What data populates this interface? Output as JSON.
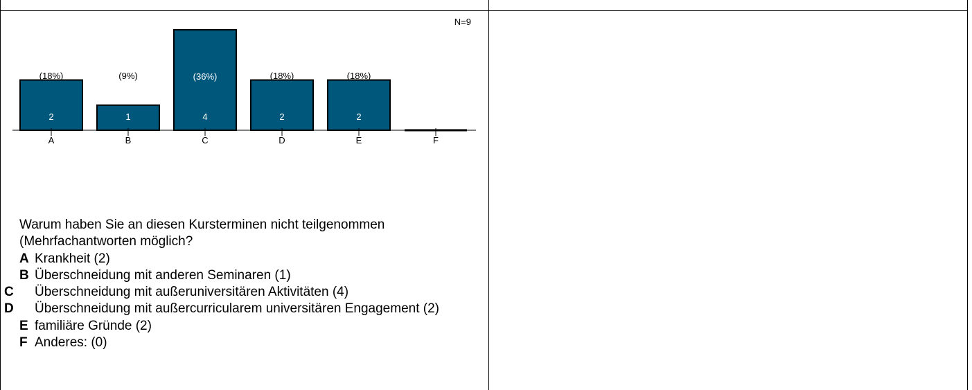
{
  "chart_data": {
    "type": "bar",
    "categories": [
      "A",
      "B",
      "C",
      "D",
      "E",
      "F"
    ],
    "values": [
      2,
      1,
      4,
      2,
      2,
      0
    ],
    "percent_labels": [
      "(18%)",
      "(9%)",
      "(36%)",
      "(18%)",
      "(18%)",
      ""
    ],
    "n_label": "N=9",
    "ylim": [
      0,
      4
    ],
    "grid": false,
    "bar_color": "#00577c",
    "title": "",
    "xlabel": "",
    "ylabel": ""
  },
  "question": {
    "text": "Warum haben Sie an diesen Kursterminen nicht teilgenommen (Mehrfachantworten möglich?",
    "options": [
      {
        "key": "A",
        "label": "Krankheit (2)"
      },
      {
        "key": "B",
        "label": "Überschneidung mit anderen Seminaren (1)"
      },
      {
        "key": "C",
        "label": "Überschneidung mit außeruniversitären Aktivitäten (4)"
      },
      {
        "key": "D",
        "label": "Überschneidung mit außercurricularem universitären Engagement (2)"
      },
      {
        "key": "E",
        "label": "familiäre Gründe (2)"
      },
      {
        "key": "F",
        "label": "Anderes: (0)"
      }
    ]
  }
}
